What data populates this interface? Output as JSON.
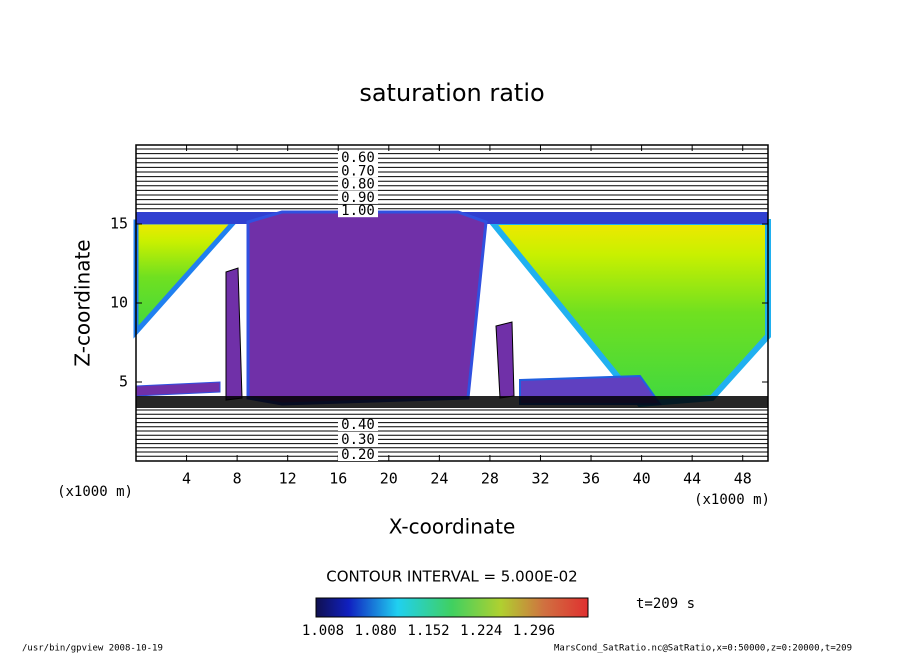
{
  "chart_data": {
    "type": "contour",
    "title": "saturation ratio",
    "x_label": "X-coordinate",
    "y_label": "Z-coordinate",
    "x_unit_left": "(x1000 m)",
    "x_unit_right": "(x1000 m)",
    "xlim": [
      0,
      50
    ],
    "xticks": [
      4,
      8,
      12,
      16,
      20,
      24,
      28,
      32,
      36,
      40,
      44,
      48
    ],
    "ylim": [
      0,
      20
    ],
    "yticks": [
      5,
      10,
      15
    ],
    "contour_labels_upper": [
      {
        "value": 0.6,
        "label": "0.60"
      },
      {
        "value": 0.7,
        "label": "0.70"
      },
      {
        "value": 0.8,
        "label": "0.80"
      },
      {
        "value": 0.9,
        "label": "0.90"
      },
      {
        "value": 1,
        "label": "1.00"
      }
    ],
    "contour_labels_lower": [
      {
        "value": 0.4,
        "label": "0.40"
      },
      {
        "value": 0.3,
        "label": "0.30"
      },
      {
        "value": 0.2,
        "label": "0.20"
      }
    ],
    "contour_interval": "CONTOUR INTERVAL = 5.000E-02",
    "colorbar_ticks": [
      1.008,
      {
        "value": 1.08,
        "label": "1.080"
      },
      1.152,
      1.224,
      1.296
    ],
    "time_label": "t=209 s",
    "footer_left": "/usr/bin/gpview   2008-10-19",
    "footer_right": "MarsCond_SatRatio.nc@SatRatio,x=0:50000,z=0:20000,t=209"
  }
}
